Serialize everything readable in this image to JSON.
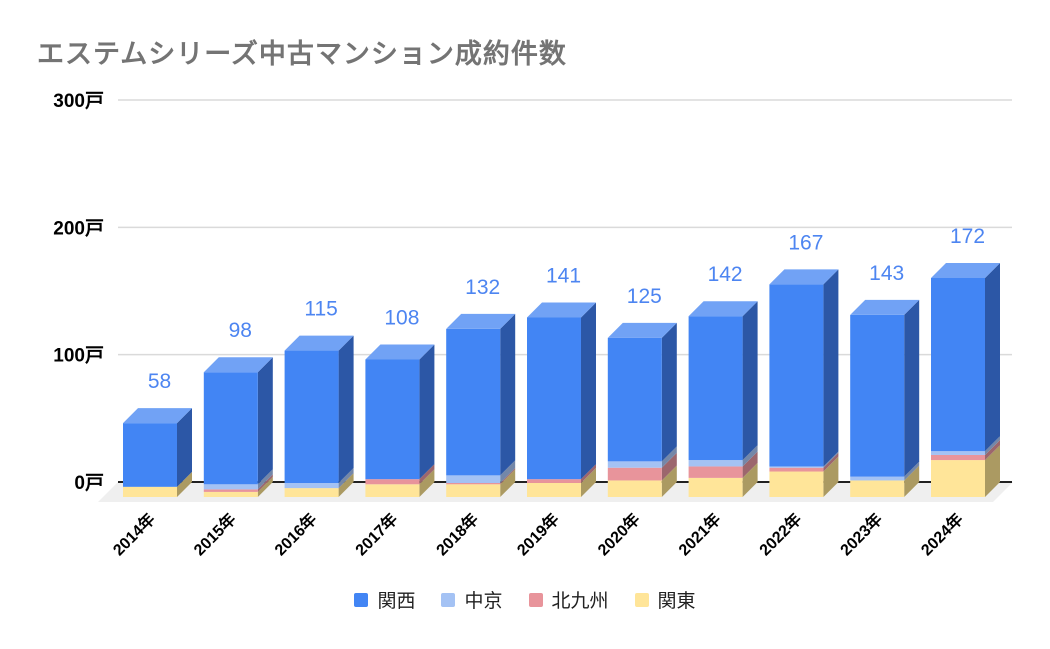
{
  "title": "エステムシリーズ中古マンション成約件数",
  "chart_data": {
    "type": "bar",
    "variant": "3d-stacked-column",
    "title": "エステムシリーズ中古マンション成約件数",
    "categories": [
      "2014年",
      "2015年",
      "2016年",
      "2017年",
      "2018年",
      "2019年",
      "2020年",
      "2021年",
      "2022年",
      "2023年",
      "2024年"
    ],
    "series": [
      {
        "name": "関西",
        "color": "#4285F4",
        "side_color": "#2C57A6",
        "top_color": "#71A2F5",
        "values": [
          50,
          88,
          104,
          94,
          115,
          127,
          97,
          113,
          143,
          127,
          136
        ]
      },
      {
        "name": "中京",
        "color": "#A4C2F4",
        "side_color": "#7487A8",
        "top_color": "#BCD2F7",
        "values": [
          0,
          4,
          4,
          0,
          6,
          0,
          5,
          5,
          1,
          3,
          3
        ]
      },
      {
        "name": "北九州",
        "color": "#E8949B",
        "side_color": "#9C666D",
        "top_color": "#F0B3B8",
        "values": [
          0,
          2,
          0,
          4,
          1,
          3,
          10,
          9,
          3,
          0,
          4
        ]
      },
      {
        "name": "関東",
        "color": "#FFE599",
        "side_color": "#AB9A62",
        "top_color": "#FFF0C2",
        "values": [
          8,
          4,
          7,
          10,
          10,
          11,
          13,
          15,
          20,
          13,
          29
        ]
      }
    ],
    "stack_order_bottom_to_top": [
      "関東",
      "北九州",
      "中京",
      "関西"
    ],
    "totals": [
      58,
      98,
      115,
      108,
      132,
      141,
      125,
      142,
      167,
      143,
      172
    ],
    "y_ticks": [
      0,
      100,
      200,
      300
    ],
    "y_tick_suffix": "戸",
    "ylim": [
      0,
      300
    ],
    "grid": true,
    "legend_position": "bottom",
    "colors": {
      "data_label": "#4D85F1",
      "title": "#747474",
      "axis_label": "#000000",
      "gridline": "#dadada",
      "zero_line": "#212121",
      "floor": "#efefef",
      "background": "#ffffff"
    }
  }
}
